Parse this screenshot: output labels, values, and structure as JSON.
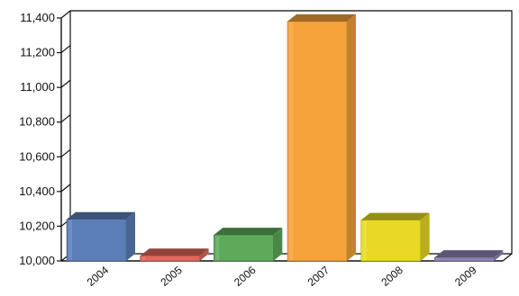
{
  "chart_data": {
    "type": "bar",
    "categories": [
      "2004",
      "2005",
      "2006",
      "2007",
      "2008",
      "2009"
    ],
    "values": [
      10240,
      10030,
      10150,
      11380,
      10235,
      10020
    ],
    "ylim": [
      10000,
      11400
    ],
    "yticks": [
      10000,
      10200,
      10400,
      10600,
      10800,
      11000,
      11200,
      11400
    ],
    "ytick_labels": [
      "10,000",
      "10,200",
      "10,400",
      "10,600",
      "10,800",
      "11,000",
      "11,200",
      "11,400"
    ],
    "grid": true,
    "style": "3d",
    "colors": [
      "#5b7fb8",
      "#e0685c",
      "#5daa5a",
      "#f4a23a",
      "#e8da24",
      "#8f82b4"
    ],
    "title": "",
    "xlabel": "",
    "ylabel": ""
  }
}
